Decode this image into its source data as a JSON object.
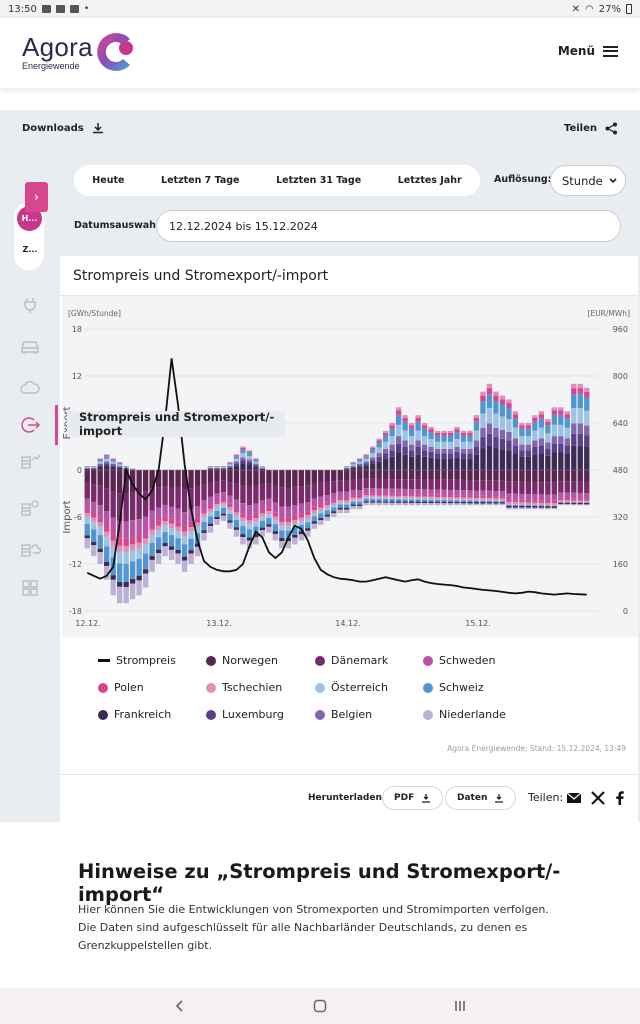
{
  "status": {
    "time": "13:50",
    "battery": "27%"
  },
  "header": {
    "logo_name": "Agora",
    "logo_sub": "Energiewende",
    "menu_label": "Menü"
  },
  "toolbar": {
    "downloads_label": "Downloads",
    "share_label": "Teilen"
  },
  "range": {
    "options": [
      "Heute",
      "Letzten 7 Tage",
      "Letzten 31 Tage",
      "Letztes Jahr"
    ],
    "resolution_label": "Auflösung:",
    "resolution_value": "Stunde"
  },
  "date": {
    "label": "Datumsauswahl:",
    "value": "12.12.2024 bis 15.12.2024"
  },
  "sidebar": {
    "active_short": "H...",
    "second_short": "Z...",
    "icons": [
      "plug-icon",
      "car-icon",
      "cloud-co2-icon",
      "import-export-icon",
      "storage-chart-icon",
      "gear-storage-icon",
      "storage-cloud-icon",
      "grid-icon"
    ]
  },
  "card": {
    "title": "Strompreis und Stromexport/-import",
    "tooltip": "Strompreis und Stromexport/-import",
    "source": "Agora Energiewende; Stand: 15.12.2024, 13:49",
    "download_label": "Herunterladen:",
    "pdf_label": "PDF",
    "data_label": "Daten",
    "share_label": "Teilen:"
  },
  "legend": [
    {
      "name": "Strompreis",
      "color": "#111111",
      "type": "line"
    },
    {
      "name": "Norwegen",
      "color": "#5c2450",
      "type": "dot"
    },
    {
      "name": "Dänemark",
      "color": "#7a2a6a",
      "type": "dot"
    },
    {
      "name": "Schweden",
      "color": "#b554a4",
      "type": "dot"
    },
    {
      "name": "Polen",
      "color": "#d8468e",
      "type": "dot"
    },
    {
      "name": "Tschechien",
      "color": "#e48cba",
      "type": "dot"
    },
    {
      "name": "Österreich",
      "color": "#9cc3e6",
      "type": "dot"
    },
    {
      "name": "Schweiz",
      "color": "#5196d1",
      "type": "dot"
    },
    {
      "name": "Frankreich",
      "color": "#3b2b55",
      "type": "dot"
    },
    {
      "name": "Luxemburg",
      "color": "#5a3f8a",
      "type": "dot"
    },
    {
      "name": "Belgien",
      "color": "#8466ad",
      "type": "dot"
    },
    {
      "name": "Niederlande",
      "color": "#bcb0d6",
      "type": "dot"
    }
  ],
  "hints": {
    "title": "Hinweise zu „Strompreis und Stromexport/-import“",
    "text": "Hier können Sie die Entwicklungen von Stromexporten und Stromimporten verfolgen. Die Daten sind aufgeschlüsselt für alle Nachbarländer Deutschlands, zu denen es Grenzkuppelstellen gibt."
  },
  "chart_data": {
    "type": "bar",
    "stacked": true,
    "title": "Strompreis und Stromexport/-import",
    "y_left_unit": "[GWh/Stunde]",
    "y_right_unit": "[EUR/MWh]",
    "ylabel_export": "Export",
    "ylabel_import": "Import",
    "y_left_ticks": [
      18,
      12,
      6,
      0,
      -6,
      -12,
      -18
    ],
    "y_right_ticks": [
      960,
      800,
      640,
      480,
      320,
      160,
      0
    ],
    "ylim_left": [
      -18,
      18
    ],
    "ylim_right": [
      0,
      960
    ],
    "x_ticks": [
      "12.12.",
      "13.12.",
      "14.12.",
      "15.12."
    ],
    "bar_count": 78,
    "series_order": [
      "Norwegen",
      "Dänemark",
      "Schweden",
      "Polen",
      "Tschechien",
      "Österreich",
      "Schweiz",
      "Frankreich",
      "Luxemburg",
      "Belgien",
      "Niederlande"
    ],
    "net_export_approx_gwh": [
      0.5,
      0.5,
      1.5,
      2,
      1.5,
      1,
      0.5,
      0.2,
      0,
      0,
      0,
      0,
      0,
      0,
      0,
      0,
      0,
      0,
      0,
      0.5,
      0.5,
      0.5,
      1,
      2,
      3,
      2.5,
      1.5,
      0.5,
      0,
      0,
      0,
      0,
      0,
      0,
      0,
      0,
      0,
      0,
      0,
      0,
      0.5,
      1,
      1.5,
      2,
      3,
      4,
      5,
      6,
      8,
      7,
      6,
      7,
      6,
      5.5,
      5,
      5,
      5,
      5.5,
      5,
      5,
      7,
      10,
      11,
      10,
      9.5,
      9,
      7.5,
      6,
      6,
      7,
      7.5,
      6.5,
      8,
      8,
      7.5,
      11,
      11,
      10.5
    ],
    "net_import_approx_gwh": [
      -10,
      -11,
      -12,
      -14,
      -16,
      -17,
      -17,
      -16.5,
      -16,
      -15,
      -13,
      -12,
      -11,
      -11.5,
      -12,
      -13,
      -12,
      -11,
      -9,
      -8,
      -7,
      -6.5,
      -7.5,
      -8.5,
      -9.5,
      -10,
      -9.5,
      -8.5,
      -8,
      -9,
      -10,
      -10,
      -9.5,
      -9,
      -8.5,
      -7.5,
      -7,
      -6.5,
      -6,
      -5.5,
      -5.5,
      -5,
      -5,
      -4.5,
      -4.5,
      -4.5,
      -4.5,
      -4.5,
      -4.5,
      -4.5,
      -4.5,
      -4.5,
      -4.5,
      -4.5,
      -4.5,
      -4.5,
      -4.5,
      -4.5,
      -4.5,
      -4.5,
      -4.5,
      -4.5,
      -4.5,
      -4.5,
      -4.5,
      -5,
      -5,
      -5,
      -5,
      -5,
      -5,
      -5,
      -5,
      -4.5,
      -4.5,
      -4.5,
      -4.5,
      -4.5
    ],
    "price_eur_mwh": [
      130,
      120,
      110,
      120,
      150,
      300,
      480,
      430,
      400,
      380,
      410,
      480,
      650,
      860,
      700,
      500,
      350,
      240,
      170,
      150,
      140,
      135,
      135,
      140,
      160,
      220,
      270,
      250,
      200,
      180,
      200,
      250,
      290,
      280,
      240,
      180,
      140,
      125,
      115,
      110,
      108,
      105,
      100,
      100,
      105,
      110,
      115,
      110,
      105,
      100,
      105,
      108,
      100,
      95,
      92,
      90,
      88,
      85,
      80,
      78,
      75,
      72,
      70,
      68,
      65,
      62,
      60,
      62,
      66,
      64,
      60,
      58,
      56,
      58,
      60,
      58,
      57,
      56
    ]
  }
}
